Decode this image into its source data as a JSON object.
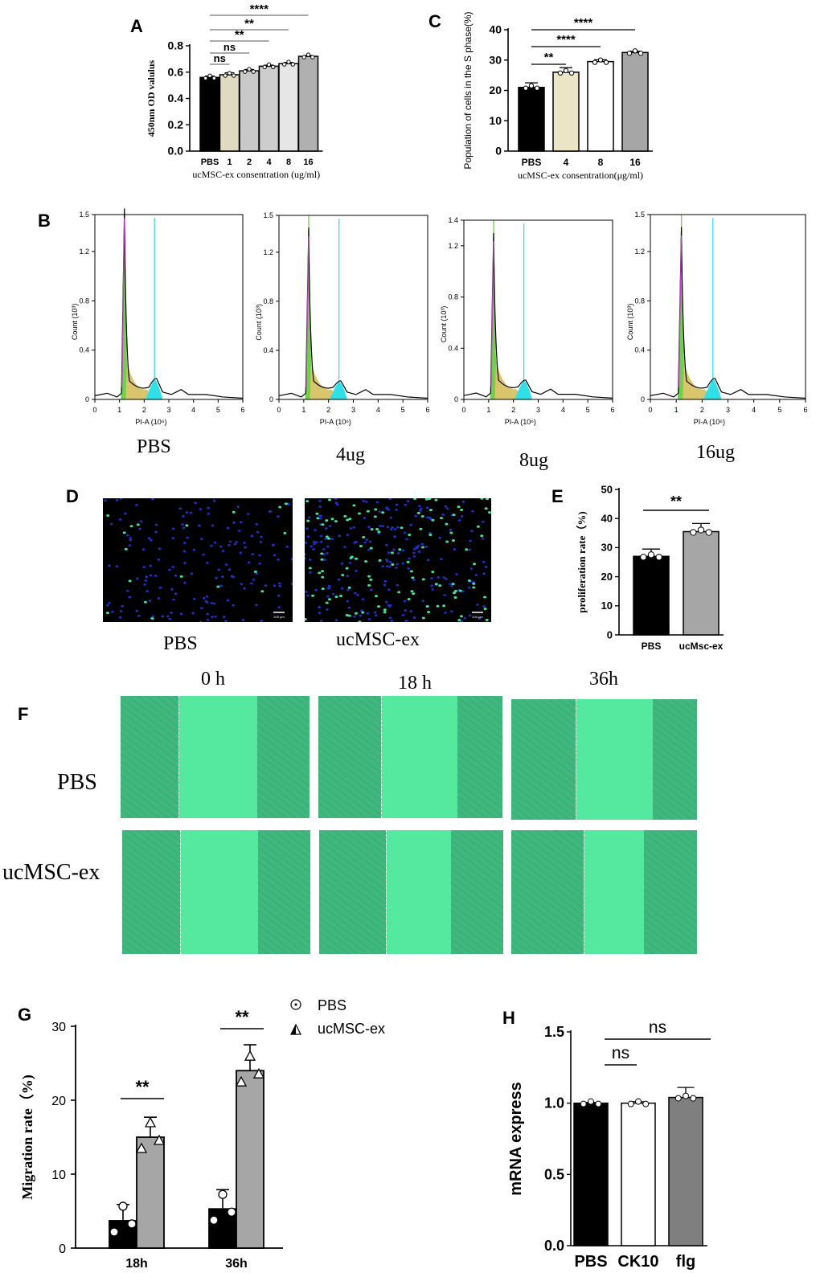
{
  "panels": {
    "A": "A",
    "B": "B",
    "C": "C",
    "D": "D",
    "E": "E",
    "F": "F",
    "G": "G",
    "H": "H"
  },
  "chart_data": [
    {
      "id": "A",
      "type": "bar",
      "categories": [
        "PBS",
        "1",
        "2",
        "4",
        "8",
        "16"
      ],
      "values": [
        0.56,
        0.58,
        0.61,
        0.645,
        0.665,
        0.72
      ],
      "errors": [
        0.01,
        0.015,
        0.01,
        0.008,
        0.008,
        0.006
      ],
      "bar_colors": [
        "#000000",
        "#dfdac0",
        "#c9c9c9",
        "#cdcdcd",
        "#e6e6e6",
        "#b0b0b0"
      ],
      "xlabel": "ucMSC-ex consentration (ug/ml)",
      "ylabel": "450nm OD valulus",
      "ylim": [
        0,
        0.8
      ],
      "yticks": [
        "0.0",
        "0.2",
        "0.4",
        "0.6",
        "0.8"
      ],
      "significance": [
        {
          "from": 0,
          "to": 1,
          "label": "ns"
        },
        {
          "from": 0,
          "to": 2,
          "label": "ns"
        },
        {
          "from": 0,
          "to": 3,
          "label": "**"
        },
        {
          "from": 0,
          "to": 4,
          "label": "**"
        },
        {
          "from": 0,
          "to": 5,
          "label": "****"
        }
      ]
    },
    {
      "id": "C",
      "type": "bar",
      "categories": [
        "PBS",
        "4",
        "8",
        "16"
      ],
      "values": [
        21,
        26,
        29.5,
        32.5
      ],
      "errors": [
        1.5,
        1.5,
        0.6,
        0.4
      ],
      "bar_colors": [
        "#000000",
        "#ebe5c6",
        "#ffffff",
        "#a6a6a6"
      ],
      "xlabel": "ucMSC-ex consentration(μg/ml)",
      "ylabel": "Population of cells in the S phase(%)",
      "ylim": [
        0,
        40
      ],
      "yticks": [
        "0",
        "10",
        "20",
        "30",
        "40"
      ],
      "significance": [
        {
          "from": 0,
          "to": 1,
          "label": "**"
        },
        {
          "from": 0,
          "to": 2,
          "label": "****"
        },
        {
          "from": 0,
          "to": 3,
          "label": "****"
        }
      ]
    },
    {
      "id": "E",
      "type": "bar",
      "categories": [
        "PBS",
        "ucMsc-ex"
      ],
      "values": [
        27,
        35.5
      ],
      "errors": [
        2.5,
        2.8
      ],
      "bar_colors": [
        "#000000",
        "#a6a6a6"
      ],
      "ylabel": "proliferation rate（%)",
      "ylim": [
        0,
        50
      ],
      "yticks": [
        "0",
        "10",
        "20",
        "30",
        "40",
        "50"
      ],
      "significance": [
        {
          "from": 0,
          "to": 1,
          "label": "**"
        }
      ]
    },
    {
      "id": "G",
      "type": "bar",
      "categories": [
        "18h",
        "36h"
      ],
      "series": [
        {
          "name": "PBS",
          "values": [
            3.7,
            5.3
          ],
          "errors": [
            2.2,
            2.6
          ],
          "color": "#000000"
        },
        {
          "name": "ucMSC-ex",
          "values": [
            15,
            24
          ],
          "errors": [
            2.7,
            3.5
          ],
          "color": "#a6a6a6"
        }
      ],
      "ylabel": "Migration rate（%)",
      "ylim": [
        0,
        30
      ],
      "yticks": [
        "0",
        "10",
        "20",
        "30"
      ],
      "significance": [
        "**",
        "**"
      ]
    },
    {
      "id": "H",
      "type": "bar",
      "categories": [
        "PBS",
        "CK10",
        "flg"
      ],
      "values": [
        1.0,
        1.0,
        1.04
      ],
      "errors": [
        0.005,
        0.01,
        0.07
      ],
      "bar_colors": [
        "#000000",
        "#ffffff",
        "#7f7f7f"
      ],
      "ylabel": "mRNA express",
      "ylim": [
        0,
        1.5
      ],
      "yticks": [
        "0.0",
        "0.5",
        "1.0",
        "1.5"
      ],
      "significance": [
        {
          "from": 0,
          "to": 1,
          "label": "ns"
        },
        {
          "from": 0,
          "to": 2,
          "label": "ns"
        }
      ]
    }
  ],
  "flow": {
    "xlabel": "PI-A (10⁶)",
    "ylabel": "Count (10³)",
    "xticks": [
      "0",
      "1",
      "2",
      "3",
      "4",
      "5",
      "6"
    ],
    "plots": [
      {
        "caption": "PBS",
        "yticks": [
          "0",
          "0.4",
          "0.8",
          "1.2",
          "1.5"
        ],
        "ymax": 1.5,
        "g1_peak": 1.55,
        "g2_peak": 0.17
      },
      {
        "caption": "4ug",
        "yticks": [
          "0",
          "0.4",
          "0.8",
          "1.2",
          "1.5"
        ],
        "ymax": 1.5,
        "g1_peak": 1.4,
        "g2_peak": 0.15
      },
      {
        "caption": "8ug",
        "yticks": [
          "0",
          "0.4",
          "0.8",
          "1.2",
          "1.4"
        ],
        "ymax": 1.4,
        "g1_peak": 1.3,
        "g2_peak": 0.15
      },
      {
        "caption": "16ug",
        "yticks": [
          "0",
          "0.4",
          "0.8",
          "1.2",
          "1.5"
        ],
        "ymax": 1.5,
        "g1_peak": 1.4,
        "g2_peak": 0.17
      }
    ]
  },
  "panel_d": {
    "captions": [
      "PBS",
      "ucMSC-ex"
    ],
    "scale_label": "200 μm"
  },
  "panel_f": {
    "times": [
      "0 h",
      "18 h",
      "36h"
    ],
    "rows": [
      "PBS",
      "ucMSC-ex"
    ]
  },
  "legend_g": [
    "PBS",
    "ucMSC-ex"
  ]
}
